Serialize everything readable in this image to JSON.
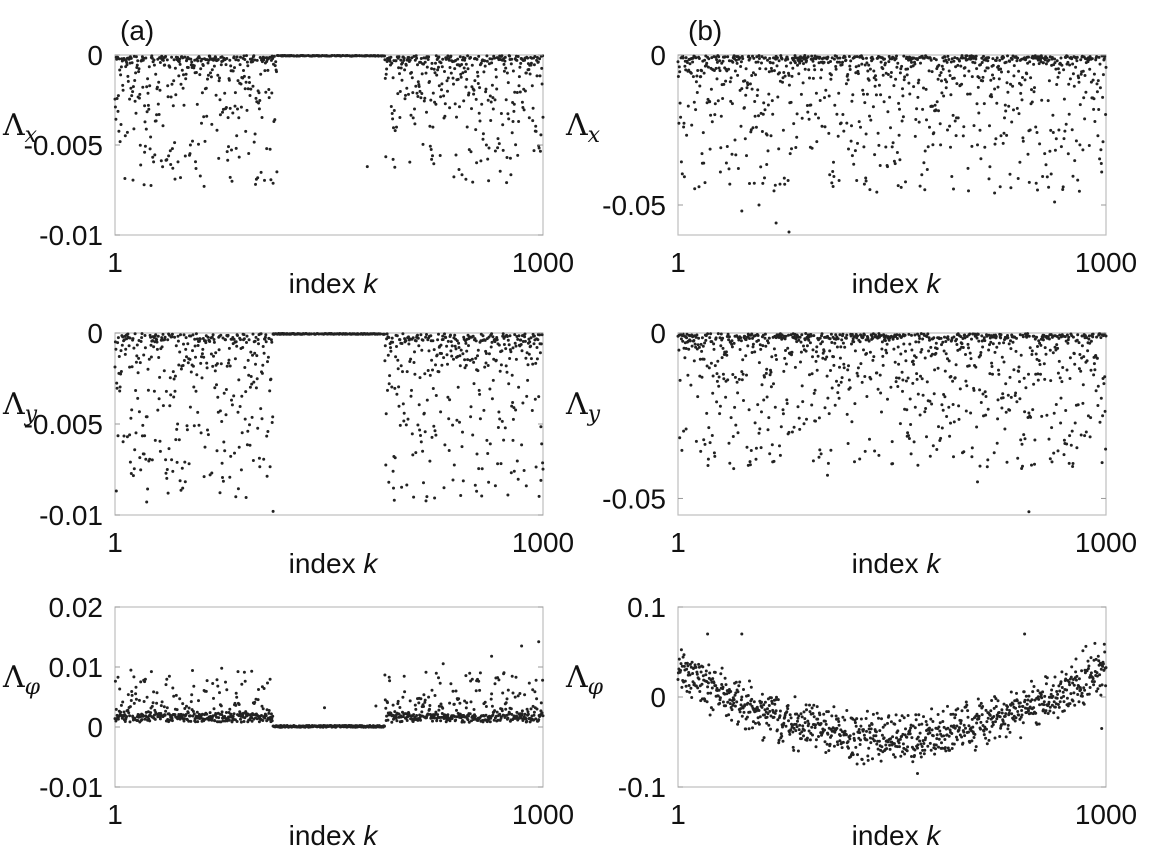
{
  "figure": {
    "panel_labels": [
      "(a)",
      "(b)"
    ],
    "x_label_prefix": "index",
    "x_label_var": "k"
  },
  "chart_data": [
    {
      "id": "a-x",
      "type": "scatter",
      "panel": "(a)",
      "ylabel_base": "Λ",
      "ylabel_sub": "x",
      "xlim": [
        1,
        1000
      ],
      "ylim": [
        -0.01,
        0
      ],
      "xticks": [
        1,
        1000
      ],
      "xtick_labels": [
        "1",
        "1000"
      ],
      "yticks": [
        0,
        -0.005,
        -0.01
      ],
      "ytick_labels": [
        "0",
        "-0.005",
        "-0.01"
      ],
      "n_points": 1000,
      "profile": {
        "kind": "neg",
        "flat_range": [
          380,
          630
        ],
        "typical": 0.0012,
        "tail_max": 0.007,
        "outliers": [
          [
            70,
            -0.0054
          ],
          [
            270,
            -0.0068
          ],
          [
            355,
            -0.0052
          ],
          [
            590,
            -0.0062
          ],
          [
            650,
            -0.0058
          ],
          [
            740,
            -0.0058
          ],
          [
            820,
            -0.0069
          ],
          [
            30,
            -0.0043
          ]
        ]
      }
    },
    {
      "id": "a-y",
      "type": "scatter",
      "panel": "(a)",
      "ylabel_base": "Λ",
      "ylabel_sub": "y",
      "xlim": [
        1,
        1000
      ],
      "ylim": [
        -0.01,
        0
      ],
      "xticks": [
        1,
        1000
      ],
      "xtick_labels": [
        "1",
        "1000"
      ],
      "yticks": [
        0,
        -0.005,
        -0.01
      ],
      "ytick_labels": [
        "0",
        "-0.005",
        "-0.01"
      ],
      "n_points": 1000,
      "profile": {
        "kind": "neg",
        "flat_range": [
          370,
          630
        ],
        "typical": 0.0015,
        "tail_max": 0.009,
        "outliers": [
          [
            35,
            -0.0056
          ],
          [
            95,
            -0.0059
          ],
          [
            280,
            -0.0066
          ],
          [
            370,
            -0.0098
          ],
          [
            640,
            -0.0082
          ],
          [
            845,
            -0.0087
          ],
          [
            930,
            -0.0059
          ],
          [
            995,
            -0.0081
          ]
        ]
      }
    },
    {
      "id": "a-phi",
      "type": "scatter",
      "panel": "(a)",
      "ylabel_base": "Λ",
      "ylabel_sub": "φ",
      "xlim": [
        1,
        1000
      ],
      "ylim": [
        -0.01,
        0.02
      ],
      "xticks": [
        1,
        1000
      ],
      "xtick_labels": [
        "1",
        "1000"
      ],
      "yticks": [
        0.02,
        0.01,
        0,
        -0.01
      ],
      "ytick_labels": [
        "0.02",
        "0.01",
        "0",
        "-0.01"
      ],
      "n_points": 1000,
      "profile": {
        "kind": "pos",
        "flat_range": [
          370,
          630
        ],
        "base": 0.0015,
        "typical": 0.0015,
        "tail_max": 0.01,
        "outliers": [
          [
            250,
            0.0098
          ],
          [
            320,
            0.0093
          ],
          [
            490,
            0.0032
          ],
          [
            610,
            0.0035
          ],
          [
            880,
            0.0118
          ],
          [
            950,
            0.0135
          ],
          [
            990,
            0.0142
          ]
        ]
      }
    },
    {
      "id": "b-x",
      "type": "scatter",
      "panel": "(b)",
      "ylabel_base": "Λ",
      "ylabel_sub": "x",
      "xlim": [
        1,
        1000
      ],
      "ylim": [
        -0.06,
        0
      ],
      "xticks": [
        1,
        1000
      ],
      "xtick_labels": [
        "1",
        "1000"
      ],
      "yticks": [
        0,
        -0.05
      ],
      "ytick_labels": [
        "0",
        "-0.05"
      ],
      "n_points": 1000,
      "profile": {
        "kind": "neg",
        "flat_range": null,
        "typical": 0.005,
        "tail_max": 0.045,
        "outliers": [
          [
            100,
            -0.039
          ],
          [
            150,
            -0.052
          ],
          [
            190,
            -0.05
          ],
          [
            230,
            -0.056
          ],
          [
            260,
            -0.059
          ],
          [
            440,
            -0.042
          ],
          [
            740,
            -0.046
          ],
          [
            840,
            -0.045
          ],
          [
            880,
            -0.049
          ]
        ]
      }
    },
    {
      "id": "b-y",
      "type": "scatter",
      "panel": "(b)",
      "ylabel_base": "Λ",
      "ylabel_sub": "y",
      "xlim": [
        1,
        1000
      ],
      "ylim": [
        -0.055,
        0
      ],
      "xticks": [
        1,
        1000
      ],
      "xtick_labels": [
        "1",
        "1000"
      ],
      "yticks": [
        0,
        -0.05
      ],
      "ytick_labels": [
        "0",
        "-0.05"
      ],
      "n_points": 1000,
      "profile": {
        "kind": "neg",
        "flat_range": null,
        "typical": 0.006,
        "tail_max": 0.04,
        "outliers": [
          [
            20,
            -0.029
          ],
          [
            165,
            -0.04
          ],
          [
            240,
            -0.037
          ],
          [
            350,
            -0.043
          ],
          [
            470,
            -0.037
          ],
          [
            700,
            -0.045
          ],
          [
            870,
            -0.038
          ],
          [
            950,
            -0.031
          ],
          [
            820,
            -0.054
          ]
        ]
      }
    },
    {
      "id": "b-phi",
      "type": "scatter",
      "panel": "(b)",
      "ylabel_base": "Λ",
      "ylabel_sub": "φ",
      "xlim": [
        1,
        1000
      ],
      "ylim": [
        -0.1,
        0.1
      ],
      "xticks": [
        1,
        1000
      ],
      "xtick_labels": [
        "1",
        "1000"
      ],
      "yticks": [
        0.1,
        0,
        -0.1
      ],
      "ytick_labels": [
        "0.1",
        "0",
        "-0.1"
      ],
      "n_points": 1000,
      "profile": {
        "kind": "band",
        "mean_edge": 0.035,
        "mean_mid": -0.045,
        "spread": 0.028,
        "outliers": [
          [
            560,
            -0.085
          ],
          [
            70,
            0.07
          ],
          [
            150,
            0.07
          ],
          [
            810,
            0.07
          ],
          [
            990,
            -0.035
          ]
        ]
      }
    }
  ]
}
